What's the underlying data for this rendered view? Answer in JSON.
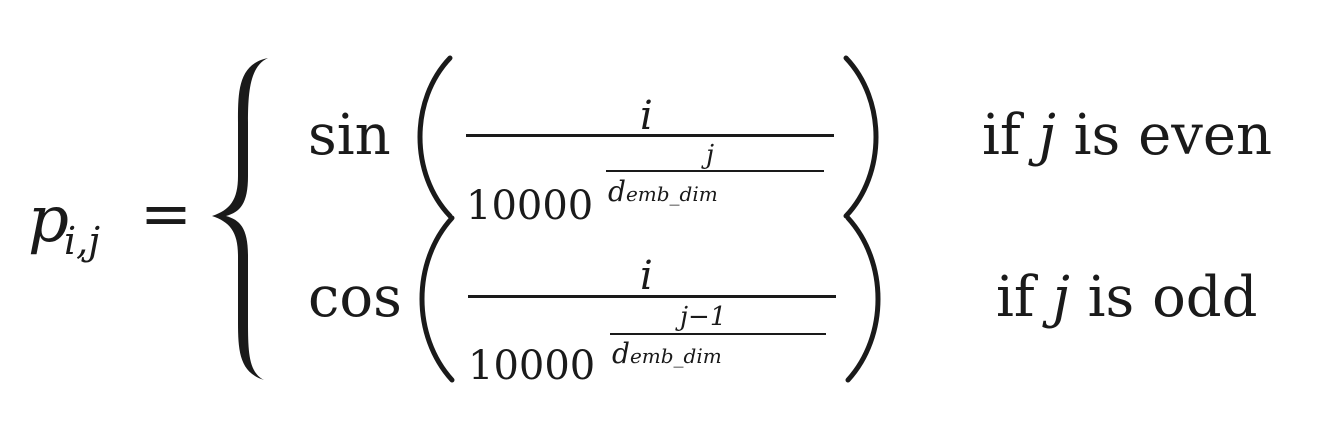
{
  "equation": {
    "lhs": {
      "symbol": "p",
      "subscript": "i,j",
      "equals": "="
    },
    "cases": [
      {
        "function": "sin",
        "numerator": "i",
        "base": "10000",
        "exponent_numerator": "j",
        "exponent_denominator_symbol": "d",
        "exponent_denominator_subscript": "emb_dim",
        "condition_prefix": "if ",
        "condition_var": "j",
        "condition_suffix": " is even"
      },
      {
        "function": "cos",
        "numerator": "i",
        "base": "10000",
        "exponent_numerator": "j−1",
        "exponent_denominator_symbol": "d",
        "exponent_denominator_subscript": "emb_dim",
        "condition_prefix": "if ",
        "condition_var": "j",
        "condition_suffix": " is odd"
      }
    ]
  }
}
